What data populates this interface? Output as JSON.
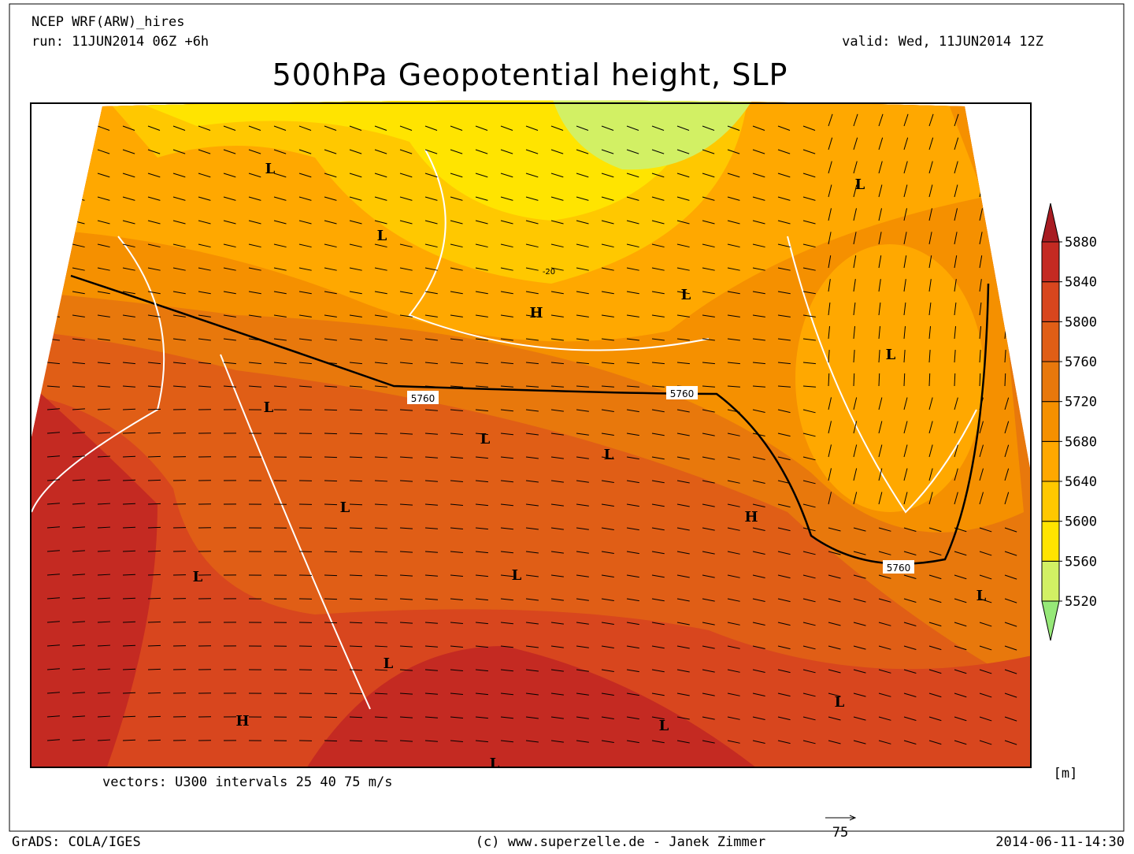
{
  "header": {
    "model": "NCEP WRF(ARW)_hires",
    "run": "run: 11JUN2014 06Z +6h",
    "valid": "valid: Wed, 11JUN2014 12Z",
    "title": "500hPa Geopotential height, SLP"
  },
  "map": {
    "centers": [
      "L",
      "L",
      "L",
      "H",
      "L",
      "L",
      "L",
      "L",
      "L",
      "L",
      "H",
      "L",
      "L",
      "L",
      "L",
      "L",
      "H",
      "L",
      "L"
    ],
    "contour_labels": [
      "5760",
      "5760",
      "5760",
      "-20"
    ]
  },
  "colorbar": {
    "ticks": [
      5520,
      5560,
      5600,
      5640,
      5680,
      5720,
      5760,
      5800,
      5840,
      5880
    ],
    "colors": [
      "#96e878",
      "#d2f064",
      "#ffe400",
      "#ffc800",
      "#ffa800",
      "#f59000",
      "#e8780c",
      "#e05e16",
      "#d8461e",
      "#c42a22",
      "#a81c22"
    ],
    "unit": "[m]"
  },
  "vectors_note": "vectors: U300 intervals 25 40 75 m/s",
  "vector_legend": "75",
  "footer": {
    "left": "GrADS: COLA/IGES",
    "center": "(c) www.superzelle.de - Janek Zimmer",
    "right": "2014-06-11-14:30"
  }
}
